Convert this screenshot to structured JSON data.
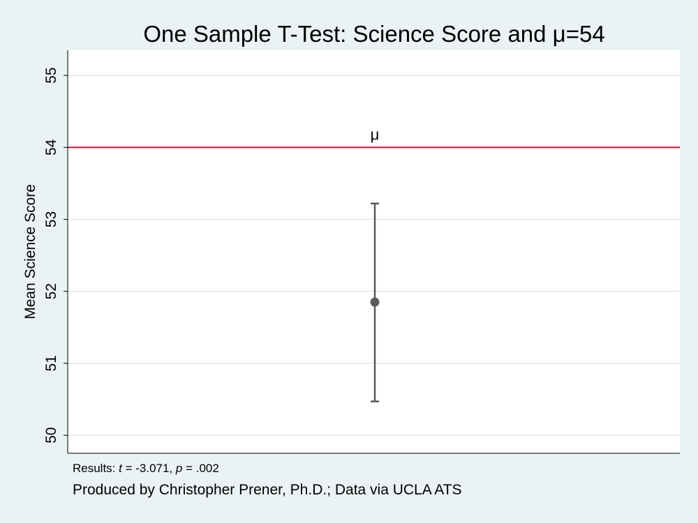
{
  "chart_data": {
    "type": "scatter",
    "title": "One Sample T-Test: Science Score and μ=54",
    "xlabel": "",
    "ylabel": "Mean Science Score",
    "ylim": [
      49.75,
      55.35
    ],
    "yticks": [
      50,
      51,
      52,
      53,
      54,
      55
    ],
    "ytick_labels": [
      "50",
      "51",
      "52",
      "53",
      "54",
      "55"
    ],
    "grid": true,
    "point": {
      "mean": 51.85,
      "ci_low": 50.47,
      "ci_high": 53.22
    },
    "reference_line": {
      "value": 54,
      "label": "μ"
    }
  },
  "notes": {
    "results_prefix": "Results: ",
    "t_symbol": "t",
    "t_text": " = -3.071, ",
    "p_symbol": "p",
    "p_text": " = .002",
    "credit": "Produced by Christopher Prener, Ph.D.; Data via UCLA ATS"
  },
  "colors": {
    "background": "#eaf2f3",
    "plot_area": "#ffffff",
    "gridline": "#e8edee",
    "reference_line": "#c8102e",
    "marker": "#5a5a5a"
  }
}
